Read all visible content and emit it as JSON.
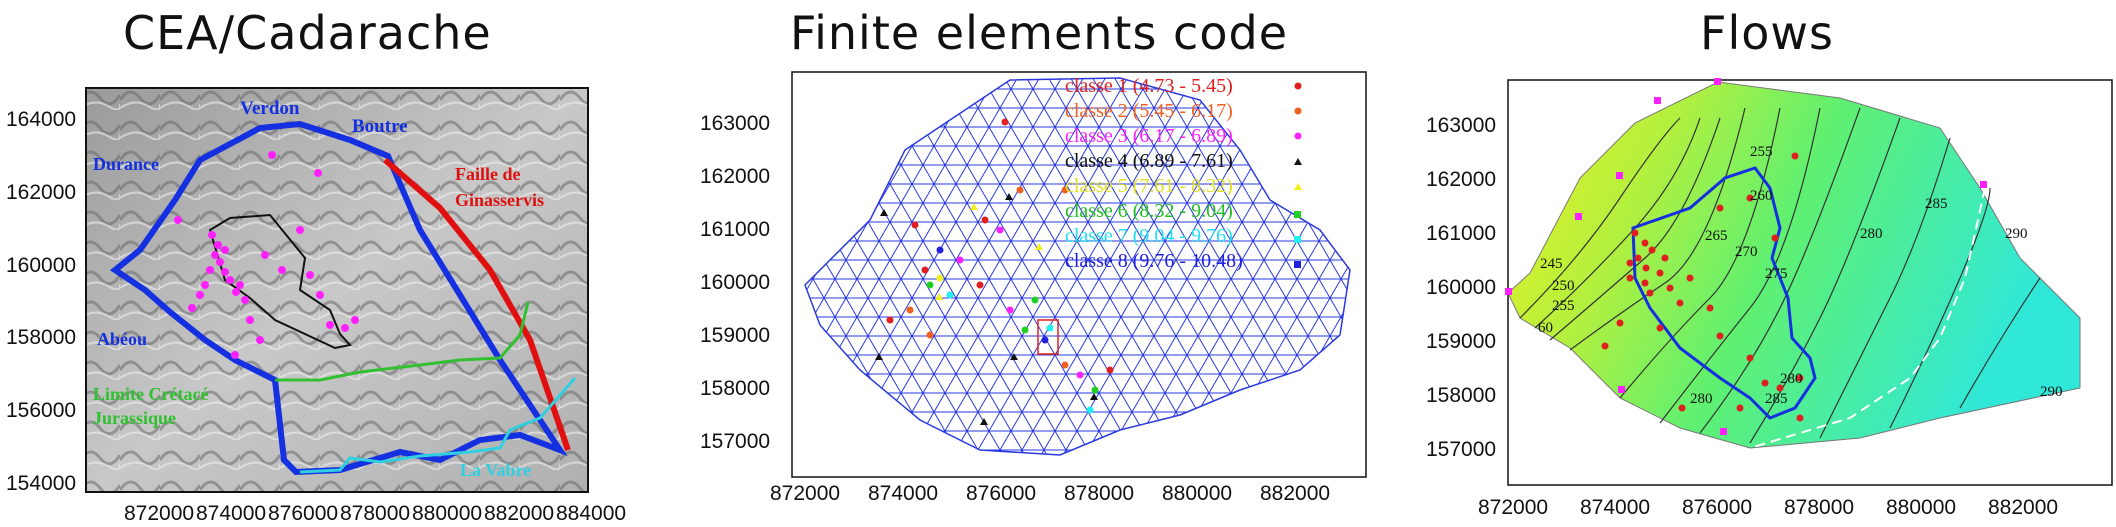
{
  "titles": {
    "left": "CEA/Cadarache",
    "middle": "Finite elements code",
    "right": "Flows"
  },
  "left_map": {
    "xticks": [
      "872000",
      "874000",
      "876000",
      "878000",
      "880000",
      "882000",
      "884000"
    ],
    "yticks": [
      "164000",
      "162000",
      "160000",
      "158000",
      "156000",
      "154000"
    ],
    "labels": {
      "verdon": "Verdon",
      "boutre": "Boutre",
      "durance": "Durance",
      "faille": "Faille de",
      "ginasservis": "Ginasservis",
      "abeou": "Abéou",
      "limite": "Limite Crétacé",
      "jurassique": "Jurassique",
      "vabre": "La Vabre"
    },
    "colors": {
      "river": "#1530e0",
      "fault": "#e01010",
      "limit": "#30c030",
      "vabre": "#30d0e0",
      "wells": "#ff20ff"
    }
  },
  "middle_map": {
    "xticks": [
      "872000",
      "874000",
      "876000",
      "878000",
      "880000",
      "882000"
    ],
    "yticks": [
      "163000",
      "162000",
      "161000",
      "160000",
      "159000",
      "158000",
      "157000"
    ],
    "legend": [
      {
        "label": "classe 1 (4.73 - 5.45)",
        "color": "#e02020"
      },
      {
        "label": "classe 2 (5.45 - 6.17)",
        "color": "#f06020"
      },
      {
        "label": "classe 3 (6.17 - 6.89)",
        "color": "#ff20ff"
      },
      {
        "label": "classe 4 (6.89 - 7.61)",
        "color": "#111111"
      },
      {
        "label": "classe 5 (7.61 - 8.32)",
        "color": "#f0f020"
      },
      {
        "label": "classe 6 (8.32 - 9.04)",
        "color": "#20d020"
      },
      {
        "label": "classe 7 (9.04 - 9.76)",
        "color": "#20f0f0"
      },
      {
        "label": "classe 8 (9.76 - 10.48)",
        "color": "#2020e0"
      }
    ]
  },
  "right_map": {
    "xticks": [
      "872000",
      "874000",
      "876000",
      "878000",
      "880000",
      "882000"
    ],
    "yticks": [
      "163000",
      "162000",
      "161000",
      "160000",
      "159000",
      "158000",
      "157000"
    ],
    "contours": [
      "245",
      "250",
      "255",
      "60",
      "255",
      "260",
      "265",
      "270",
      "275",
      "280",
      "285",
      "290",
      "280",
      "285",
      "290",
      "280"
    ]
  }
}
